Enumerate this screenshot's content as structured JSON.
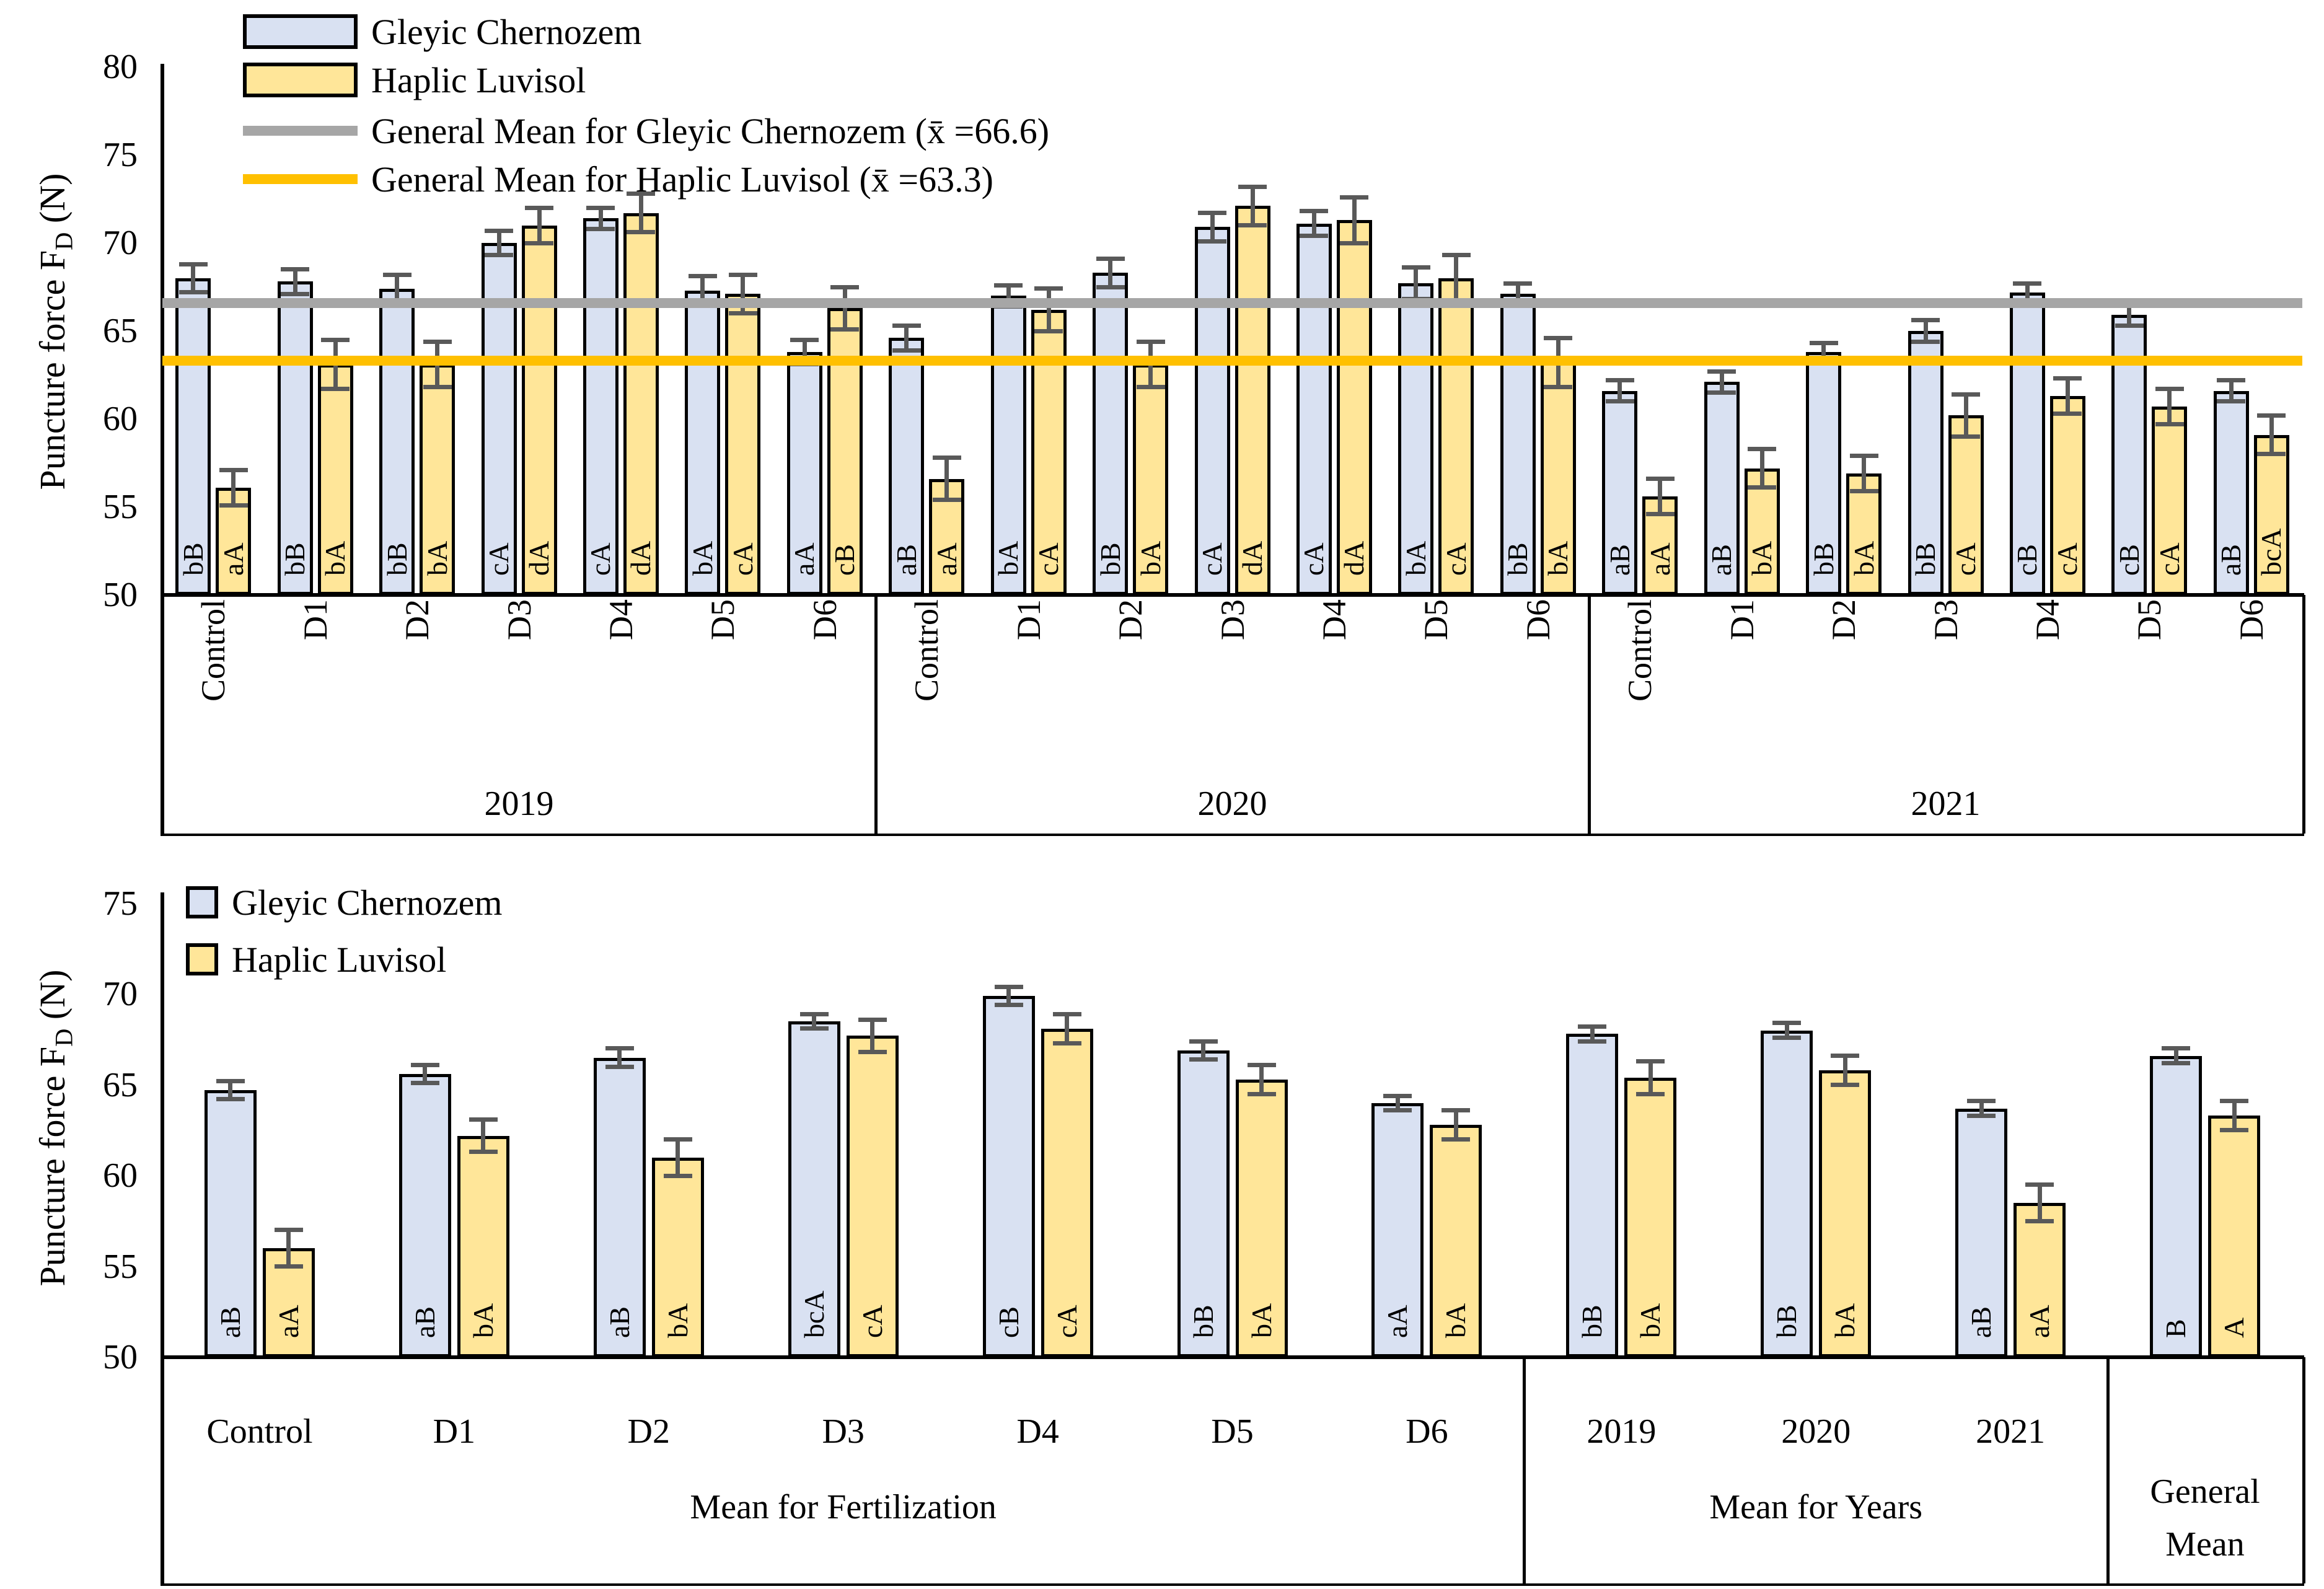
{
  "colors": {
    "chernozem_fill": "#d9e1f2",
    "luvisol_fill": "#ffe699",
    "bar_border": "#000000",
    "error_bar": "#595959",
    "mean_line_chernozem": "#a6a6a6",
    "mean_line_luvisol": "#ffc000"
  },
  "chart_data": [
    {
      "id": "top",
      "type": "bar",
      "title": "",
      "ylabel": {
        "prefix": "Puncture  force F",
        "sub": "D",
        "suffix": " (N)"
      },
      "ylim": [
        50,
        80
      ],
      "yticks": [
        80,
        75,
        70,
        65,
        60,
        55,
        50
      ],
      "grid": false,
      "legend_position": "top-left",
      "legend": [
        {
          "swatch": "rect-chernozem",
          "label": "Gleyic Chernozem"
        },
        {
          "swatch": "rect-luvisol",
          "label": "Haplic Luvisol"
        },
        {
          "swatch": "line-gray",
          "label": "General Mean for Gleyic Chernozem (x̄ =66.6)"
        },
        {
          "swatch": "line-orange",
          "label": "General Mean for Haplic Luvisol (x̄ =63.3)"
        }
      ],
      "series_names": [
        "Gleyic Chernozem",
        "Haplic Luvisol"
      ],
      "general_mean_lines": [
        {
          "name": "General Mean for Gleyic Chernozem",
          "value": 66.6,
          "color_key": "mean_line_chernozem"
        },
        {
          "name": "General Mean for Haplic Luvisol",
          "value": 63.3,
          "color_key": "mean_line_luvisol"
        }
      ],
      "sections": [
        {
          "year": "2019",
          "groups": [
            {
              "label": "Control",
              "chernozem": {
                "value": 68.0,
                "err": 0.8,
                "letter": "bB"
              },
              "luvisol": {
                "value": 56.1,
                "err": 1.0,
                "letter": "aA"
              }
            },
            {
              "label": "D1",
              "chernozem": {
                "value": 67.8,
                "err": 0.7,
                "letter": "bB"
              },
              "luvisol": {
                "value": 63.1,
                "err": 1.4,
                "letter": "bA"
              }
            },
            {
              "label": "D2",
              "chernozem": {
                "value": 67.4,
                "err": 0.8,
                "letter": "bB"
              },
              "luvisol": {
                "value": 63.1,
                "err": 1.3,
                "letter": "bA"
              }
            },
            {
              "label": "D3",
              "chernozem": {
                "value": 70.0,
                "err": 0.7,
                "letter": "cA"
              },
              "luvisol": {
                "value": 71.0,
                "err": 1.0,
                "letter": "dA"
              }
            },
            {
              "label": "D4",
              "chernozem": {
                "value": 71.4,
                "err": 0.6,
                "letter": "cA"
              },
              "luvisol": {
                "value": 71.7,
                "err": 1.1,
                "letter": "dA"
              }
            },
            {
              "label": "D5",
              "chernozem": {
                "value": 67.3,
                "err": 0.8,
                "letter": "bA"
              },
              "luvisol": {
                "value": 67.1,
                "err": 1.1,
                "letter": "cA"
              }
            },
            {
              "label": "D6",
              "chernozem": {
                "value": 63.8,
                "err": 0.7,
                "letter": "aA"
              },
              "luvisol": {
                "value": 66.3,
                "err": 1.2,
                "letter": "cB"
              }
            }
          ]
        },
        {
          "year": "2020",
          "groups": [
            {
              "label": "Control",
              "chernozem": {
                "value": 64.6,
                "err": 0.7,
                "letter": "aB"
              },
              "luvisol": {
                "value": 56.6,
                "err": 1.2,
                "letter": "aA"
              }
            },
            {
              "label": "D1",
              "chernozem": {
                "value": 67.0,
                "err": 0.6,
                "letter": "bA"
              },
              "luvisol": {
                "value": 66.2,
                "err": 1.2,
                "letter": "cA"
              }
            },
            {
              "label": "D2",
              "chernozem": {
                "value": 68.3,
                "err": 0.8,
                "letter": "bB"
              },
              "luvisol": {
                "value": 63.1,
                "err": 1.3,
                "letter": "bA"
              }
            },
            {
              "label": "D3",
              "chernozem": {
                "value": 70.9,
                "err": 0.8,
                "letter": "cA"
              },
              "luvisol": {
                "value": 72.1,
                "err": 1.1,
                "letter": "dA"
              }
            },
            {
              "label": "D4",
              "chernozem": {
                "value": 71.1,
                "err": 0.7,
                "letter": "cA"
              },
              "luvisol": {
                "value": 71.3,
                "err": 1.3,
                "letter": "dA"
              }
            },
            {
              "label": "D5",
              "chernozem": {
                "value": 67.7,
                "err": 0.9,
                "letter": "bA"
              },
              "luvisol": {
                "value": 68.0,
                "err": 1.3,
                "letter": "cA"
              }
            },
            {
              "label": "D6",
              "chernozem": {
                "value": 67.1,
                "err": 0.6,
                "letter": "bB"
              },
              "luvisol": {
                "value": 63.2,
                "err": 1.4,
                "letter": "bA"
              }
            }
          ]
        },
        {
          "year": "2021",
          "groups": [
            {
              "label": "Control",
              "chernozem": {
                "value": 61.6,
                "err": 0.6,
                "letter": "aB"
              },
              "luvisol": {
                "value": 55.6,
                "err": 1.0,
                "letter": "aA"
              }
            },
            {
              "label": "D1",
              "chernozem": {
                "value": 62.1,
                "err": 0.6,
                "letter": "aB"
              },
              "luvisol": {
                "value": 57.2,
                "err": 1.1,
                "letter": "bA"
              }
            },
            {
              "label": "D2",
              "chernozem": {
                "value": 63.8,
                "err": 0.5,
                "letter": "bB"
              },
              "luvisol": {
                "value": 56.9,
                "err": 1.0,
                "letter": "bA"
              }
            },
            {
              "label": "D3",
              "chernozem": {
                "value": 65.0,
                "err": 0.6,
                "letter": "bB"
              },
              "luvisol": {
                "value": 60.2,
                "err": 1.2,
                "letter": "cA"
              }
            },
            {
              "label": "D4",
              "chernozem": {
                "value": 67.2,
                "err": 0.5,
                "letter": "cB"
              },
              "luvisol": {
                "value": 61.3,
                "err": 1.0,
                "letter": "cA"
              }
            },
            {
              "label": "D5",
              "chernozem": {
                "value": 65.9,
                "err": 0.6,
                "letter": "cB"
              },
              "luvisol": {
                "value": 60.7,
                "err": 1.0,
                "letter": "cA"
              }
            },
            {
              "label": "D6",
              "chernozem": {
                "value": 61.6,
                "err": 0.6,
                "letter": "aB"
              },
              "luvisol": {
                "value": 59.1,
                "err": 1.1,
                "letter": "bcA"
              }
            }
          ]
        }
      ]
    },
    {
      "id": "bottom",
      "type": "bar",
      "title": "",
      "ylabel": {
        "prefix": "Puncture force F",
        "sub": "D",
        "suffix": " (N)"
      },
      "ylim": [
        50,
        75
      ],
      "yticks": [
        75,
        70,
        65,
        60,
        55,
        50
      ],
      "grid": false,
      "legend_position": "top-left",
      "legend": [
        {
          "swatch": "sq-chernozem",
          "label": "Gleyic Chernozem"
        },
        {
          "swatch": "sq-luvisol",
          "label": "Haplic Luvisol"
        }
      ],
      "series_names": [
        "Gleyic Chernozem",
        "Haplic Luvisol"
      ],
      "sections": [
        {
          "label": "Mean for Fertilization",
          "groups": [
            {
              "label": "Control",
              "chernozem": {
                "value": 64.7,
                "err": 0.5,
                "letter": "aB"
              },
              "luvisol": {
                "value": 56.0,
                "err": 1.0,
                "letter": "aA"
              }
            },
            {
              "label": "D1",
              "chernozem": {
                "value": 65.6,
                "err": 0.5,
                "letter": "aB"
              },
              "luvisol": {
                "value": 62.2,
                "err": 0.9,
                "letter": "bA"
              }
            },
            {
              "label": "D2",
              "chernozem": {
                "value": 66.5,
                "err": 0.5,
                "letter": "aB"
              },
              "luvisol": {
                "value": 61.0,
                "err": 1.0,
                "letter": "bA"
              }
            },
            {
              "label": "D3",
              "chernozem": {
                "value": 68.5,
                "err": 0.4,
                "letter": "bcA"
              },
              "luvisol": {
                "value": 67.7,
                "err": 0.9,
                "letter": "cA"
              }
            },
            {
              "label": "D4",
              "chernozem": {
                "value": 69.9,
                "err": 0.5,
                "letter": "cB"
              },
              "luvisol": {
                "value": 68.1,
                "err": 0.8,
                "letter": "cA"
              }
            },
            {
              "label": "D5",
              "chernozem": {
                "value": 66.9,
                "err": 0.5,
                "letter": "bB"
              },
              "luvisol": {
                "value": 65.3,
                "err": 0.8,
                "letter": "bA"
              }
            },
            {
              "label": "D6",
              "chernozem": {
                "value": 64.0,
                "err": 0.4,
                "letter": "aA"
              },
              "luvisol": {
                "value": 62.8,
                "err": 0.8,
                "letter": "bA"
              }
            }
          ]
        },
        {
          "label": "Mean for Years",
          "groups": [
            {
              "label": "2019",
              "chernozem": {
                "value": 67.8,
                "err": 0.4,
                "letter": "bB"
              },
              "luvisol": {
                "value": 65.4,
                "err": 0.9,
                "letter": "bA"
              }
            },
            {
              "label": "2020",
              "chernozem": {
                "value": 68.0,
                "err": 0.4,
                "letter": "bB"
              },
              "luvisol": {
                "value": 65.8,
                "err": 0.8,
                "letter": "bA"
              }
            },
            {
              "label": "2021",
              "chernozem": {
                "value": 63.7,
                "err": 0.4,
                "letter": "aB"
              },
              "luvisol": {
                "value": 58.5,
                "err": 1.0,
                "letter": "aA"
              }
            }
          ]
        },
        {
          "label": "General Mean",
          "label_lines": [
            "General",
            "Mean"
          ],
          "groups": [
            {
              "label": "",
              "chernozem": {
                "value": 66.6,
                "err": 0.4,
                "letter": "B"
              },
              "luvisol": {
                "value": 63.3,
                "err": 0.8,
                "letter": "A"
              }
            }
          ]
        }
      ]
    }
  ]
}
